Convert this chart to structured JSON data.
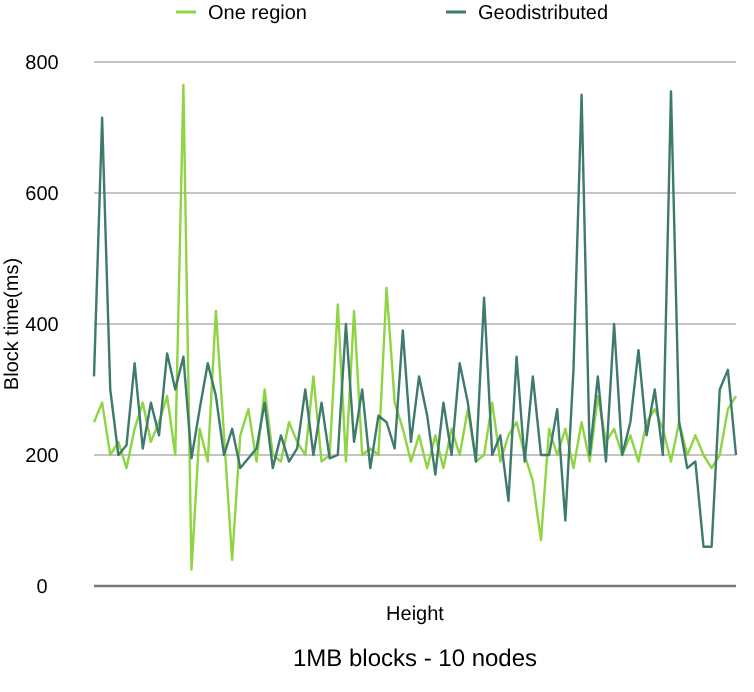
{
  "chart_data": {
    "type": "line",
    "title": "1MB blocks - 10 nodes",
    "xlabel": "Height",
    "ylabel": "Block time(ms)",
    "categories": [
      null,
      null,
      null,
      null,
      null,
      null,
      null,
      null,
      null,
      null,
      null,
      null,
      null,
      null,
      null,
      null,
      null,
      null,
      null,
      null,
      null,
      null,
      null,
      null,
      null,
      null,
      null,
      null,
      null,
      null,
      null,
      null,
      null,
      null,
      null,
      null,
      null,
      null,
      null,
      null,
      null,
      null,
      null,
      null,
      null,
      null,
      null,
      null,
      null,
      null,
      null,
      null,
      null,
      null,
      null,
      null,
      null,
      null,
      null,
      null,
      null,
      null,
      null,
      null,
      null,
      null,
      null,
      null,
      null,
      null,
      null,
      null,
      null,
      null,
      null,
      null,
      null,
      null,
      null,
      null
    ],
    "series": [
      {
        "name": "One region",
        "color": "#8ed443",
        "values": [
          250,
          280,
          200,
          220,
          180,
          240,
          280,
          220,
          250,
          290,
          200,
          765,
          25,
          240,
          190,
          420,
          230,
          40,
          230,
          270,
          190,
          300,
          200,
          190,
          250,
          220,
          200,
          320,
          190,
          200,
          430,
          190,
          420,
          200,
          210,
          200,
          455,
          280,
          240,
          190,
          230,
          180,
          230,
          180,
          240,
          200,
          270,
          190,
          200,
          280,
          190,
          230,
          250,
          200,
          160,
          70,
          240,
          200,
          240,
          180,
          250,
          190,
          290,
          220,
          240,
          200,
          230,
          190,
          250,
          270,
          240,
          190,
          250,
          200,
          230,
          200,
          180,
          200,
          270,
          290
        ]
      },
      {
        "name": "Geodistributed",
        "color": "#3e7a6e",
        "values": [
          320,
          715,
          300,
          200,
          215,
          340,
          210,
          280,
          230,
          355,
          300,
          350,
          195,
          270,
          340,
          290,
          200,
          240,
          180,
          195,
          210,
          280,
          180,
          230,
          190,
          210,
          300,
          200,
          280,
          195,
          200,
          400,
          220,
          300,
          180,
          260,
          250,
          210,
          390,
          220,
          320,
          260,
          170,
          280,
          200,
          340,
          280,
          190,
          440,
          200,
          230,
          130,
          350,
          190,
          320,
          200,
          200,
          270,
          100,
          330,
          750,
          200,
          320,
          190,
          400,
          200,
          250,
          360,
          230,
          300,
          200,
          755,
          250,
          180,
          190,
          60,
          60,
          300,
          330,
          200
        ]
      }
    ],
    "ylim": [
      0,
      800
    ],
    "yticks": [
      0,
      200,
      400,
      600,
      800
    ],
    "grid": "y",
    "legend": "top",
    "tick_labels": "y"
  }
}
